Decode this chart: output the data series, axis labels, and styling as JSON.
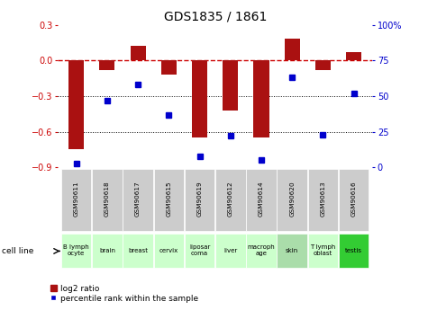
{
  "title": "GDS1835 / 1861",
  "samples": [
    "GSM90611",
    "GSM90618",
    "GSM90617",
    "GSM90615",
    "GSM90619",
    "GSM90612",
    "GSM90614",
    "GSM90620",
    "GSM90613",
    "GSM90616"
  ],
  "cell_lines": [
    "B lymph\nocyte",
    "brain",
    "breast",
    "cervix",
    "liposar\ncoma",
    "liver",
    "macroph\nage",
    "skin",
    "T lymph\noblast",
    "testis"
  ],
  "cell_bg_colors": [
    "#ccffcc",
    "#ccffcc",
    "#ccffcc",
    "#ccffcc",
    "#ccffcc",
    "#ccffcc",
    "#ccffcc",
    "#aaddaa",
    "#ccffcc",
    "#33cc33"
  ],
  "log2_ratio": [
    -0.75,
    -0.08,
    0.12,
    -0.12,
    -0.65,
    -0.42,
    -0.65,
    0.18,
    -0.08,
    0.07
  ],
  "percentile_rank": [
    3,
    47,
    58,
    37,
    8,
    22,
    5,
    63,
    23,
    52
  ],
  "ylim_left": [
    -0.9,
    0.3
  ],
  "ylim_right": [
    0,
    100
  ],
  "bar_color": "#aa1111",
  "dot_color": "#0000cc",
  "dashed_line_color": "#cc0000",
  "bg_color": "#ffffff",
  "plot_bg_color": "#ffffff",
  "left_yticks": [
    0.3,
    0.0,
    -0.3,
    -0.6,
    -0.9
  ],
  "right_yticks": [
    100,
    75,
    50,
    25,
    0
  ],
  "left_ylabel_color": "#cc0000",
  "right_ylabel_color": "#0000cc",
  "gsm_bg": "#cccccc",
  "bar_width": 0.5
}
